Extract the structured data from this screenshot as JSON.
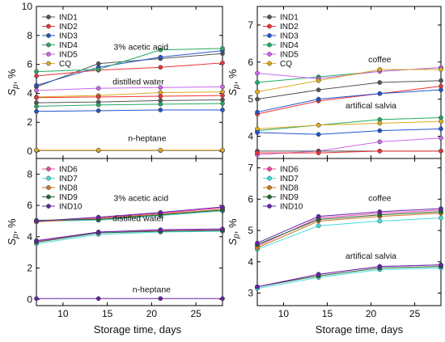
{
  "xlabel": "Storage time, days",
  "ylabel_main": "S",
  "ylabel_sub": "p",
  "ylabel_unit": ", %",
  "chart_data": [
    {
      "id": "tl",
      "type": "line",
      "xlim": [
        7,
        28
      ],
      "ylim": [
        -0.5,
        10
      ],
      "xticks": [
        10,
        15,
        20,
        25
      ],
      "yticks": [
        0,
        2,
        4,
        6,
        8,
        10
      ],
      "x": [
        7,
        14,
        21,
        28
      ],
      "legend": "top-left",
      "annotations": [
        {
          "text": "3% acetic acid",
          "x": 18.8,
          "y": 7.0
        },
        {
          "text": "distilled water",
          "x": 18.5,
          "y": 4.6
        },
        {
          "text": "n-heptane",
          "x": 19.5,
          "y": 0.7
        }
      ],
      "series": [
        {
          "name": "IND1",
          "color": "#555555",
          "values": [
            4.45,
            6.05,
            6.4,
            6.75
          ]
        },
        {
          "name": "IND2",
          "color": "#ee3333",
          "values": [
            5.2,
            5.6,
            5.8,
            6.1
          ]
        },
        {
          "name": "IND3",
          "color": "#2255cc",
          "values": [
            4.55,
            5.8,
            6.5,
            6.95
          ]
        },
        {
          "name": "IND4",
          "color": "#22aa66",
          "values": [
            5.5,
            5.65,
            7.0,
            7.1
          ]
        },
        {
          "name": "IND5",
          "color": "#cc66ee",
          "values": [
            4.2,
            4.35,
            4.4,
            4.45
          ]
        },
        {
          "name": "CQ",
          "color": "#ddaa22",
          "values": [
            3.75,
            3.85,
            4.05,
            4.1
          ]
        },
        {
          "name": "",
          "color": "#ee3333",
          "values": [
            3.7,
            3.75,
            3.8,
            3.85
          ]
        },
        {
          "name": "",
          "color": "#555555",
          "values": [
            3.35,
            3.4,
            3.5,
            3.55
          ]
        },
        {
          "name": "",
          "color": "#22aa66",
          "values": [
            3.1,
            3.2,
            3.25,
            3.3
          ]
        },
        {
          "name": "",
          "color": "#2255cc",
          "values": [
            2.75,
            2.8,
            2.85,
            2.85
          ]
        },
        {
          "name": "",
          "color": "#555555",
          "values": [
            0.05,
            0.05,
            0.05,
            0.05
          ]
        },
        {
          "name": "",
          "color": "#ddaa22",
          "values": [
            0.08,
            0.08,
            0.08,
            0.08
          ]
        }
      ]
    },
    {
      "id": "tr",
      "type": "line",
      "xlim": [
        7,
        28
      ],
      "ylim": [
        3.4,
        7.5
      ],
      "xticks": [
        10,
        15,
        20,
        25
      ],
      "yticks": [
        4,
        5,
        6,
        7
      ],
      "x": [
        7,
        14,
        21,
        28
      ],
      "legend": "top-left",
      "annotations": [
        {
          "text": "coffee",
          "x": 21.0,
          "y": 6.0
        },
        {
          "text": "artifical salvia",
          "x": 20.0,
          "y": 4.75
        }
      ],
      "series": [
        {
          "name": "IND1",
          "color": "#555555",
          "values": [
            5.0,
            5.25,
            5.45,
            5.5
          ]
        },
        {
          "name": "IND2",
          "color": "#ee3333",
          "values": [
            4.6,
            4.95,
            5.15,
            5.35
          ]
        },
        {
          "name": "IND3",
          "color": "#2255cc",
          "values": [
            4.65,
            5.0,
            5.15,
            5.25
          ]
        },
        {
          "name": "IND4",
          "color": "#22aa66",
          "values": [
            5.45,
            5.6,
            5.75,
            5.85
          ]
        },
        {
          "name": "IND5",
          "color": "#cc66ee",
          "values": [
            5.7,
            5.55,
            5.75,
            5.85
          ]
        },
        {
          "name": "CQ",
          "color": "#ddaa22",
          "values": [
            5.2,
            5.5,
            5.8,
            5.8
          ]
        },
        {
          "name": "",
          "color": "#22aa66",
          "values": [
            4.15,
            4.3,
            4.45,
            4.5
          ]
        },
        {
          "name": "",
          "color": "#ddaa22",
          "values": [
            4.2,
            4.3,
            4.35,
            4.4
          ]
        },
        {
          "name": "",
          "color": "#2255cc",
          "values": [
            4.1,
            4.05,
            4.15,
            4.2
          ]
        },
        {
          "name": "",
          "color": "#cc66ee",
          "values": [
            3.5,
            3.6,
            3.85,
            3.95
          ]
        },
        {
          "name": "",
          "color": "#555555",
          "values": [
            3.6,
            3.6,
            3.6,
            3.6
          ]
        },
        {
          "name": "",
          "color": "#ee3333",
          "values": [
            3.55,
            3.55,
            3.6,
            3.6
          ]
        }
      ]
    },
    {
      "id": "bl",
      "type": "line",
      "xlim": [
        7,
        28
      ],
      "ylim": [
        -0.4,
        9
      ],
      "xticks": [
        10,
        15,
        20,
        25
      ],
      "yticks": [
        0,
        2,
        4,
        6,
        8
      ],
      "x": [
        7,
        14,
        21,
        28
      ],
      "legend": "top-left",
      "annotations": [
        {
          "text": "3% acetic acid",
          "x": 18.8,
          "y": 6.3
        },
        {
          "text": "distilled water",
          "x": 18.5,
          "y": 5.0
        },
        {
          "text": "n-heptane",
          "x": 20.0,
          "y": 0.45
        }
      ],
      "series": [
        {
          "name": "IND6",
          "color": "#ee44aa",
          "values": [
            4.95,
            5.2,
            5.5,
            5.85
          ]
        },
        {
          "name": "IND7",
          "color": "#44dddd",
          "values": [
            5.0,
            5.05,
            5.35,
            5.65
          ]
        },
        {
          "name": "IND8",
          "color": "#cc7722",
          "values": [
            4.95,
            5.15,
            5.45,
            5.75
          ]
        },
        {
          "name": "IND9",
          "color": "#226633",
          "values": [
            5.05,
            5.1,
            5.4,
            5.7
          ]
        },
        {
          "name": "IND10",
          "color": "#6622aa",
          "values": [
            5.0,
            5.25,
            5.55,
            5.9
          ]
        },
        {
          "name": "",
          "color": "#ee44aa",
          "values": [
            3.7,
            4.3,
            4.4,
            4.45
          ]
        },
        {
          "name": "",
          "color": "#44dddd",
          "values": [
            3.55,
            4.15,
            4.3,
            4.35
          ]
        },
        {
          "name": "",
          "color": "#226633",
          "values": [
            3.65,
            4.25,
            4.35,
            4.4
          ]
        },
        {
          "name": "",
          "color": "#6622aa",
          "values": [
            3.75,
            4.3,
            4.45,
            4.5
          ]
        },
        {
          "name": "",
          "color": "#6622aa",
          "values": [
            0.05,
            0.05,
            0.05,
            0.05
          ]
        }
      ]
    },
    {
      "id": "br",
      "type": "line",
      "xlim": [
        7,
        28
      ],
      "ylim": [
        2.6,
        7.3
      ],
      "xticks": [
        10,
        15,
        20,
        25
      ],
      "yticks": [
        3,
        4,
        5,
        6,
        7
      ],
      "x": [
        7,
        14,
        21,
        28
      ],
      "legend": "top-left",
      "annotations": [
        {
          "text": "coffee",
          "x": 21.0,
          "y": 5.95
        },
        {
          "text": "artifical salvia",
          "x": 20.0,
          "y": 4.1
        }
      ],
      "series": [
        {
          "name": "IND6",
          "color": "#ee44aa",
          "values": [
            4.5,
            5.4,
            5.55,
            5.65
          ]
        },
        {
          "name": "IND7",
          "color": "#44dddd",
          "values": [
            4.4,
            5.15,
            5.3,
            5.4
          ]
        },
        {
          "name": "IND8",
          "color": "#cc7722",
          "values": [
            4.45,
            5.3,
            5.45,
            5.55
          ]
        },
        {
          "name": "IND9",
          "color": "#226633",
          "values": [
            4.55,
            5.35,
            5.5,
            5.6
          ]
        },
        {
          "name": "IND10",
          "color": "#6622aa",
          "values": [
            4.6,
            5.45,
            5.6,
            5.7
          ]
        },
        {
          "name": "",
          "color": "#ee44aa",
          "values": [
            3.2,
            3.6,
            3.85,
            3.9
          ]
        },
        {
          "name": "",
          "color": "#44dddd",
          "values": [
            3.15,
            3.5,
            3.75,
            3.8
          ]
        },
        {
          "name": "",
          "color": "#226633",
          "values": [
            3.2,
            3.55,
            3.8,
            3.85
          ]
        },
        {
          "name": "",
          "color": "#6622aa",
          "values": [
            3.2,
            3.6,
            3.85,
            3.9
          ]
        }
      ]
    }
  ]
}
